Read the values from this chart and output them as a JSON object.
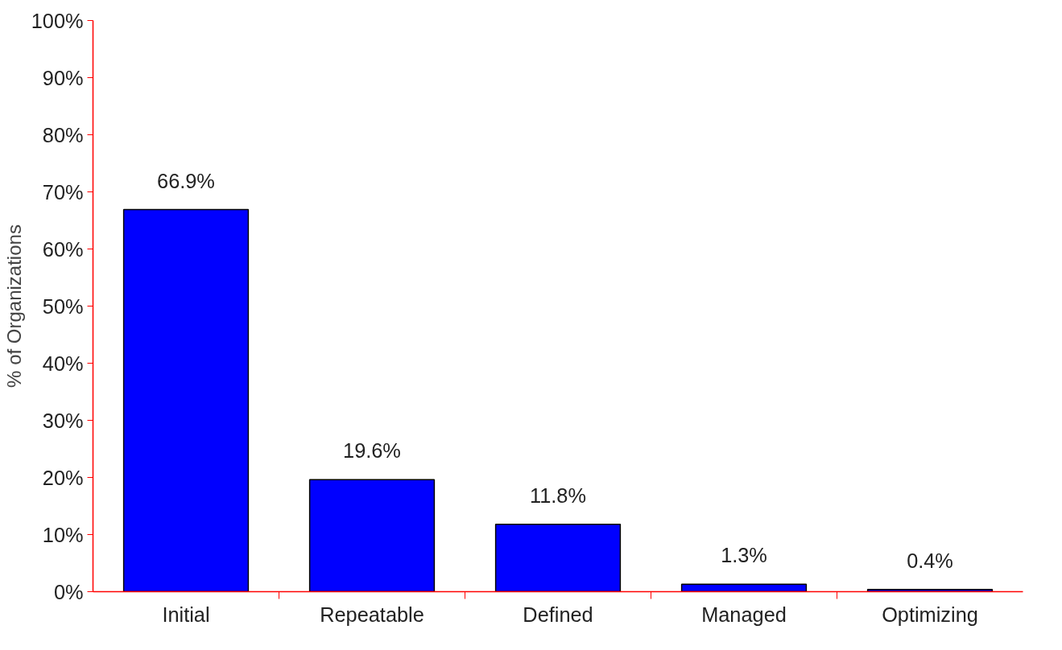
{
  "chart_data": {
    "type": "bar",
    "ylabel": "% of Organizations",
    "categories": [
      "Initial",
      "Repeatable",
      "Defined",
      "Managed",
      "Optimizing"
    ],
    "values": [
      66.9,
      19.6,
      11.8,
      1.3,
      0.4
    ],
    "value_labels": [
      "66.9%",
      "19.6%",
      "11.8%",
      "1.3%",
      "0.4%"
    ],
    "color": "#0000ff",
    "ylim": [
      0,
      100
    ],
    "yticks": [
      {
        "value": 0,
        "label": "0%"
      },
      {
        "value": 10,
        "label": "10%"
      },
      {
        "value": 20,
        "label": "20%"
      },
      {
        "value": 30,
        "label": "30%"
      },
      {
        "value": 40,
        "label": "40%"
      },
      {
        "value": 50,
        "label": "50%"
      },
      {
        "value": 60,
        "label": "60%"
      },
      {
        "value": 70,
        "label": "70%"
      },
      {
        "value": 80,
        "label": "80%"
      },
      {
        "value": 90,
        "label": "90%"
      },
      {
        "value": 100,
        "label": "100%"
      }
    ],
    "grid": false
  }
}
